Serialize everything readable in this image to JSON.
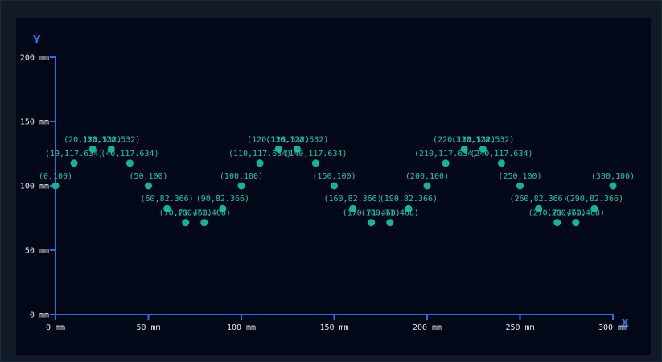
{
  "chart_data": {
    "type": "scatter",
    "title": "",
    "xlabel": "X",
    "ylabel": "Y",
    "unit": "mm",
    "xlim": [
      0,
      300
    ],
    "ylim": [
      0,
      200
    ],
    "x_ticks": [
      0,
      50,
      100,
      150,
      200,
      250,
      300
    ],
    "y_ticks": [
      0,
      50,
      100,
      150,
      200
    ],
    "x_tick_labels": [
      "0 mm",
      "50 mm",
      "100 mm",
      "150 mm",
      "200 mm",
      "250 mm",
      "300 mm"
    ],
    "y_tick_labels": [
      "0 mm",
      "50 mm",
      "100 mm",
      "150 mm",
      "200 mm"
    ],
    "grid": false,
    "points": [
      {
        "x": 0,
        "y": 100,
        "label": "(0,100)"
      },
      {
        "x": 10,
        "y": 117.634,
        "label": "(10,117.634)"
      },
      {
        "x": 20,
        "y": 128.532,
        "label": "(20,128.532)"
      },
      {
        "x": 30,
        "y": 128.532,
        "label": "(30,128.532)"
      },
      {
        "x": 40,
        "y": 117.634,
        "label": "(40,117.634)"
      },
      {
        "x": 50,
        "y": 100,
        "label": "(50,100)"
      },
      {
        "x": 60,
        "y": 82.366,
        "label": "(60,82.366)"
      },
      {
        "x": 70,
        "y": 71.468,
        "label": "(70,71.468)"
      },
      {
        "x": 80,
        "y": 71.468,
        "label": "(80,71.468)"
      },
      {
        "x": 90,
        "y": 82.366,
        "label": "(90,82.366)"
      },
      {
        "x": 100,
        "y": 100,
        "label": "(100,100)"
      },
      {
        "x": 110,
        "y": 117.634,
        "label": "(110,117.634)"
      },
      {
        "x": 120,
        "y": 128.532,
        "label": "(120,128.532)"
      },
      {
        "x": 130,
        "y": 128.532,
        "label": "(130,128.532)"
      },
      {
        "x": 140,
        "y": 117.634,
        "label": "(140,117.634)"
      },
      {
        "x": 150,
        "y": 100,
        "label": "(150,100)"
      },
      {
        "x": 160,
        "y": 82.366,
        "label": "(160,82.366)"
      },
      {
        "x": 170,
        "y": 71.468,
        "label": "(170,71.468)"
      },
      {
        "x": 180,
        "y": 71.468,
        "label": "(180,71.468)"
      },
      {
        "x": 190,
        "y": 82.366,
        "label": "(190,82.366)"
      },
      {
        "x": 200,
        "y": 100,
        "label": "(200,100)"
      },
      {
        "x": 210,
        "y": 117.634,
        "label": "(210,117.634)"
      },
      {
        "x": 220,
        "y": 128.532,
        "label": "(220,128.532)"
      },
      {
        "x": 230,
        "y": 128.532,
        "label": "(230,128.532)"
      },
      {
        "x": 240,
        "y": 117.634,
        "label": "(240,117.634)"
      },
      {
        "x": 250,
        "y": 100,
        "label": "(250,100)"
      },
      {
        "x": 260,
        "y": 82.366,
        "label": "(260,82.366)"
      },
      {
        "x": 270,
        "y": 71.468,
        "label": "(270,71.468)"
      },
      {
        "x": 280,
        "y": 71.468,
        "label": "(280,71.468)"
      },
      {
        "x": 290,
        "y": 82.366,
        "label": "(290,82.366)"
      },
      {
        "x": 300,
        "y": 100,
        "label": "(300,100)"
      }
    ],
    "colors": {
      "axis": "#2f6fe0",
      "point": "#17b29a",
      "point_label": "#21c4b0",
      "tick_label": "#e6e6e6",
      "background": "#020817"
    }
  }
}
